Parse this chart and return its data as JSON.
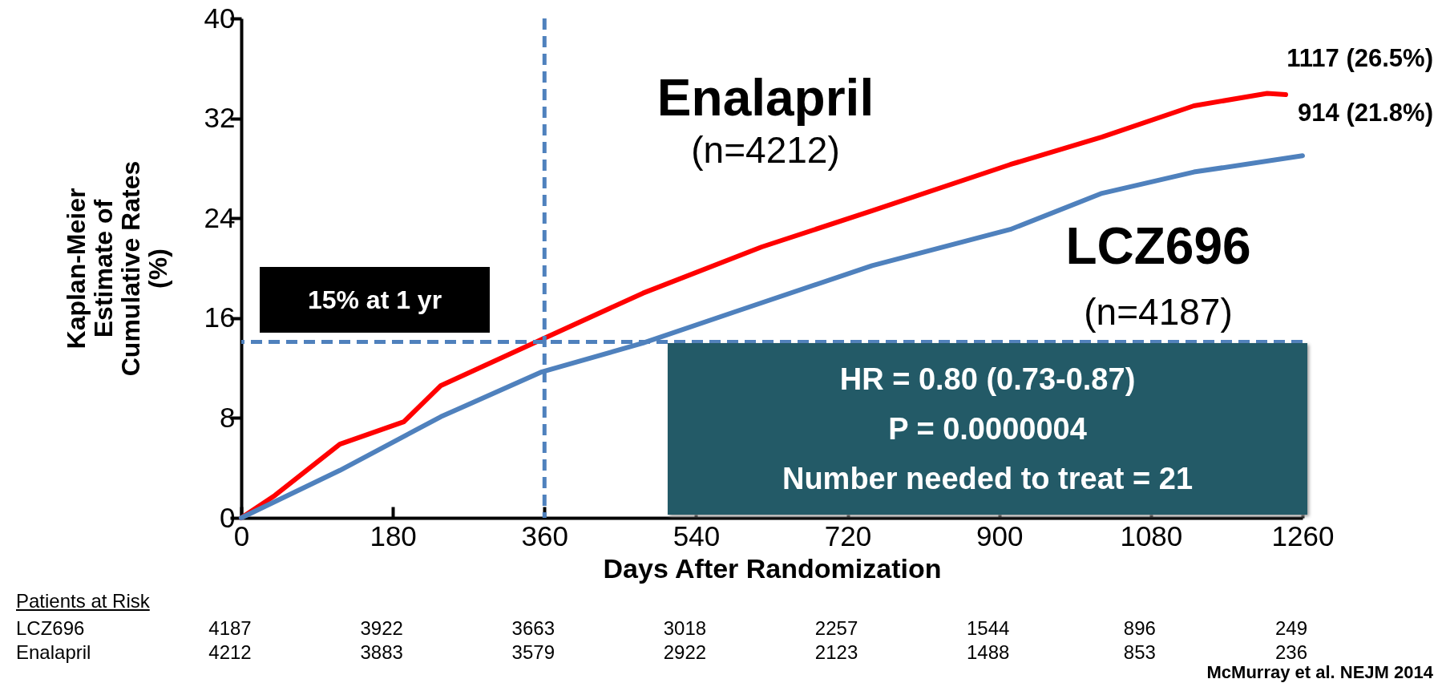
{
  "chart_data": {
    "type": "line",
    "xlabel": "Days After Randomization",
    "ylabel": "Kaplan-Meier Estimate of Cumulative Rates (%)",
    "xlim": [
      0,
      1260
    ],
    "xticks": [
      0,
      180,
      360,
      540,
      720,
      900,
      1080,
      1260
    ],
    "ylim": [
      0,
      40
    ],
    "yticks": [
      0,
      8,
      16,
      24,
      32,
      40
    ],
    "grid": false,
    "legend": false,
    "line_style": "solid",
    "marker": "none",
    "series": [
      {
        "name": "Enalapril",
        "color": "#ff0000",
        "x": [
          0,
          40,
          117,
          193,
          237,
          357,
          477,
          618,
          749,
          913,
          1022,
          1131,
          1218,
          1240
        ],
        "values": [
          0,
          1.8,
          5.9,
          7.7,
          10.6,
          14.3,
          18,
          21.7,
          24.6,
          28.3,
          30.5,
          33,
          34,
          33.9
        ]
      },
      {
        "name": "LCZ696",
        "color": "#4f81bd",
        "x": [
          0,
          117,
          237,
          357,
          477,
          586,
          749,
          913,
          1022,
          1131,
          1260
        ],
        "values": [
          0,
          3.8,
          8.1,
          11.7,
          14,
          16.5,
          20.2,
          23.1,
          26,
          27.7,
          29
        ]
      }
    ],
    "ref_lines": [
      {
        "axis": "x",
        "value": 360,
        "color": "#4f81bd",
        "line_style": "dashed"
      },
      {
        "axis": "y",
        "value": 14.1,
        "color": "#4f81bd",
        "line_style": "dashed"
      }
    ],
    "annotations": [
      "(n=4212)",
      "(n=4187)",
      "1117 (26.5%)",
      "914 (21.8%)",
      "15% at 1 yr",
      "HR = 0.80 (0.73-0.87)\nP = 0.0000004\nNumber needed to treat = 21",
      "Patients at Risk",
      "LCZ696 4187 3922 3663 3018 2257 1544 896 249",
      "Enalapril 4212 3883 3579 2922 2123 1488 853 236",
      "McMurray et al. NEJM 2014"
    ]
  }
}
